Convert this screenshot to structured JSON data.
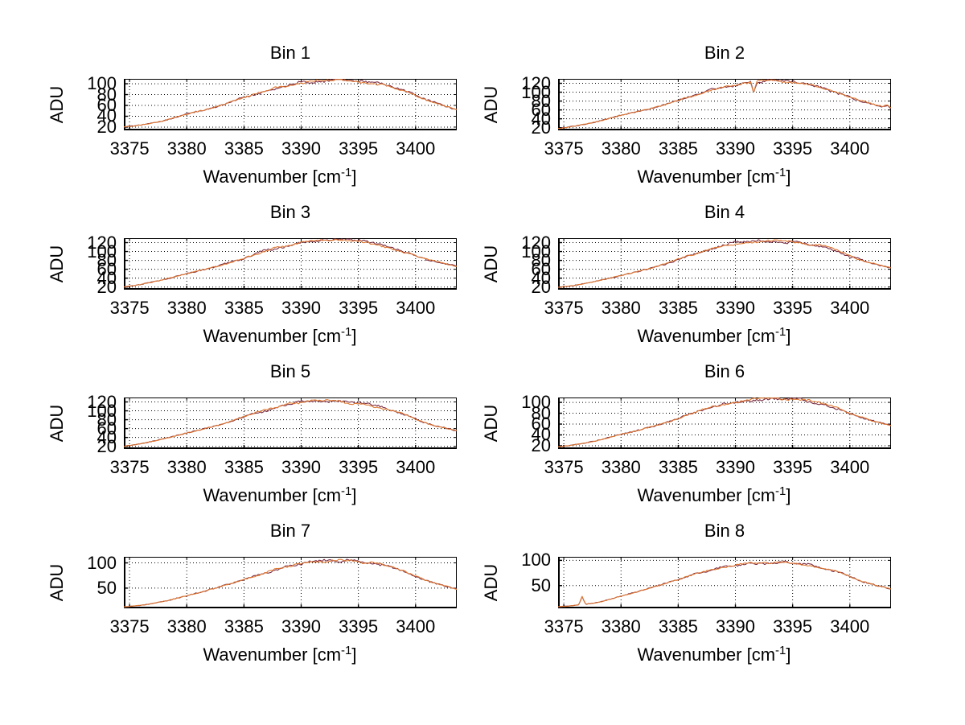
{
  "colors": {
    "background": "#ffffff",
    "axis": "#000000",
    "grid": "#000000",
    "series_primary": "#e07830",
    "series_secondary": "#7b2d44"
  },
  "labels": {
    "ylabel": "ADU",
    "xlabel_parts": [
      "Wavenumber [cm",
      "-1",
      "]"
    ]
  },
  "chart_data": [
    {
      "type": "line",
      "title": "Bin 1",
      "xlabel": "Wavenumber [cm^-1]",
      "ylabel": "ADU",
      "x_ticks": [
        3375,
        3380,
        3385,
        3390,
        3395,
        3400
      ],
      "y_ticks": [
        20,
        40,
        60,
        80,
        100
      ],
      "xlim": [
        3374.5,
        3403.6
      ],
      "ylim": [
        14,
        109
      ],
      "grid": "dotted",
      "x": [
        3374.5,
        3376,
        3378,
        3380,
        3382.5,
        3385,
        3387.5,
        3390,
        3391.5,
        3393,
        3395,
        3397,
        3399,
        3401,
        3403.6
      ],
      "y": [
        20,
        24,
        32,
        44,
        57,
        75,
        90,
        101,
        104,
        106,
        104,
        99,
        87,
        70,
        52
      ],
      "features": []
    },
    {
      "type": "line",
      "title": "Bin 2",
      "xlabel": "Wavenumber [cm^-1]",
      "ylabel": "ADU",
      "x_ticks": [
        3375,
        3380,
        3385,
        3390,
        3395,
        3400
      ],
      "y_ticks": [
        20,
        40,
        60,
        80,
        100,
        120
      ],
      "xlim": [
        3374.5,
        3403.6
      ],
      "ylim": [
        14,
        130
      ],
      "grid": "dotted",
      "x": [
        3374.5,
        3376,
        3378,
        3380,
        3382.5,
        3385,
        3387.5,
        3390,
        3391.5,
        3393,
        3395,
        3397,
        3399,
        3401,
        3403.6
      ],
      "y": [
        18,
        24,
        34,
        48,
        63,
        81,
        101,
        118,
        124,
        125,
        121,
        114,
        99,
        80,
        62
      ],
      "features": [
        {
          "x": 3391.6,
          "delta": -25,
          "width": 0.28
        },
        {
          "x": 3403.3,
          "delta": 6,
          "width": 0.5
        }
      ]
    },
    {
      "type": "line",
      "title": "Bin 3",
      "xlabel": "Wavenumber [cm^-1]",
      "ylabel": "ADU",
      "x_ticks": [
        3375,
        3380,
        3385,
        3390,
        3395,
        3400
      ],
      "y_ticks": [
        20,
        40,
        60,
        80,
        100,
        120
      ],
      "xlim": [
        3374.5,
        3403.6
      ],
      "ylim": [
        14,
        130
      ],
      "grid": "dotted",
      "x": [
        3374.5,
        3376,
        3378,
        3380,
        3382.5,
        3385,
        3387.5,
        3390,
        3391.5,
        3393,
        3395,
        3397,
        3399,
        3401,
        3403.6
      ],
      "y": [
        20,
        26,
        37,
        50,
        66,
        85,
        106,
        121,
        126,
        126,
        122,
        114,
        99,
        82,
        66
      ],
      "features": []
    },
    {
      "type": "line",
      "title": "Bin 4",
      "xlabel": "Wavenumber [cm^-1]",
      "ylabel": "ADU",
      "x_ticks": [
        3375,
        3380,
        3385,
        3390,
        3395,
        3400
      ],
      "y_ticks": [
        20,
        40,
        60,
        80,
        100,
        120
      ],
      "xlim": [
        3374.5,
        3403.6
      ],
      "ylim": [
        14,
        130
      ],
      "grid": "dotted",
      "x": [
        3374.5,
        3376,
        3378,
        3380,
        3382.5,
        3385,
        3387.5,
        3390,
        3391.5,
        3393,
        3395,
        3397,
        3399,
        3401,
        3403.6
      ],
      "y": [
        19,
        24,
        34,
        46,
        62,
        82,
        104,
        118,
        123,
        124,
        122,
        115,
        100,
        80,
        63
      ],
      "features": []
    },
    {
      "type": "line",
      "title": "Bin 5",
      "xlabel": "Wavenumber [cm^-1]",
      "ylabel": "ADU",
      "x_ticks": [
        3375,
        3380,
        3385,
        3390,
        3395,
        3400
      ],
      "y_ticks": [
        20,
        40,
        60,
        80,
        100,
        120
      ],
      "xlim": [
        3374.5,
        3403.6
      ],
      "ylim": [
        14,
        130
      ],
      "grid": "dotted",
      "x": [
        3374.5,
        3376,
        3378,
        3380,
        3382.5,
        3385,
        3387.5,
        3390,
        3391.5,
        3393,
        3395,
        3397,
        3399,
        3401,
        3403.6
      ],
      "y": [
        20,
        26,
        37,
        50,
        66,
        86,
        106,
        118,
        121,
        120,
        116,
        107,
        92,
        72,
        55
      ],
      "features": []
    },
    {
      "type": "line",
      "title": "Bin 6",
      "xlabel": "Wavenumber [cm^-1]",
      "ylabel": "ADU",
      "x_ticks": [
        3375,
        3380,
        3385,
        3390,
        3395,
        3400
      ],
      "y_ticks": [
        20,
        40,
        60,
        80,
        100
      ],
      "xlim": [
        3374.5,
        3403.6
      ],
      "ylim": [
        14,
        109
      ],
      "grid": "dotted",
      "x": [
        3374.5,
        3376,
        3378,
        3380,
        3382.5,
        3385,
        3387.5,
        3390,
        3391.5,
        3393,
        3395,
        3397,
        3399,
        3401,
        3403.6
      ],
      "y": [
        18,
        22,
        30,
        41,
        54,
        70,
        88,
        101,
        106,
        108,
        106,
        100,
        88,
        72,
        57
      ],
      "features": []
    },
    {
      "type": "line",
      "title": "Bin 7",
      "xlabel": "Wavenumber [cm^-1]",
      "ylabel": "ADU",
      "x_ticks": [
        3375,
        3380,
        3385,
        3390,
        3395,
        3400
      ],
      "y_ticks": [
        50,
        100
      ],
      "xlim": [
        3374.5,
        3403.6
      ],
      "ylim": [
        10,
        112
      ],
      "grid": "dotted",
      "x": [
        3374.5,
        3376,
        3378,
        3380,
        3382.5,
        3385,
        3387.5,
        3390,
        3391.5,
        3393,
        3395,
        3397,
        3399,
        3401,
        3403.6
      ],
      "y": [
        13,
        16,
        24,
        35,
        50,
        67,
        85,
        98,
        103,
        105,
        102,
        96,
        83,
        65,
        48
      ],
      "features": []
    },
    {
      "type": "line",
      "title": "Bin 8",
      "xlabel": "Wavenumber [cm^-1]",
      "ylabel": "ADU",
      "x_ticks": [
        3375,
        3380,
        3385,
        3390,
        3395,
        3400
      ],
      "y_ticks": [
        50,
        100
      ],
      "xlim": [
        3374.5,
        3403.6
      ],
      "ylim": [
        5,
        107
      ],
      "grid": "dotted",
      "x": [
        3374.5,
        3376,
        3378,
        3380,
        3382.5,
        3385,
        3387.5,
        3390,
        3391.5,
        3393,
        3395,
        3397,
        3399,
        3401,
        3403.6
      ],
      "y": [
        8,
        11,
        17,
        29,
        45,
        62,
        79,
        91,
        95,
        96,
        94,
        88,
        77,
        59,
        43
      ],
      "features": [
        {
          "x": 3376.6,
          "delta": 16,
          "width": 0.3
        }
      ]
    }
  ]
}
